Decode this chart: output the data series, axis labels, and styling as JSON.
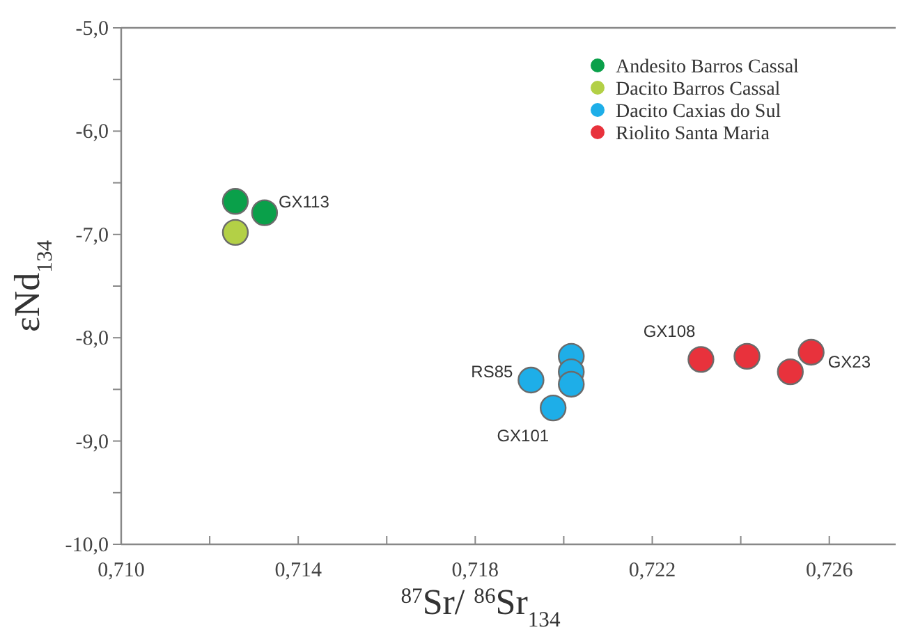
{
  "chart_data": {
    "type": "scatter",
    "xlabel": "$^{87}$Sr/ $^{86}$Sr$_{134}$",
    "ylabel": "εNd$_{134}$",
    "xlim": [
      0.71,
      0.7275
    ],
    "ylim": [
      -10,
      -5
    ],
    "xticks": [
      {
        "value": 0.71,
        "label": "0,710"
      },
      {
        "value": 0.712,
        "label": null
      },
      {
        "value": 0.714,
        "label": "0,714"
      },
      {
        "value": 0.716,
        "label": null
      },
      {
        "value": 0.718,
        "label": "0,718"
      },
      {
        "value": 0.72,
        "label": null
      },
      {
        "value": 0.722,
        "label": "0,722"
      },
      {
        "value": 0.724,
        "label": null
      },
      {
        "value": 0.726,
        "label": "0,726"
      }
    ],
    "yticks": [
      {
        "value": -10,
        "label": "-10,0"
      },
      {
        "value": -9.5,
        "label": null
      },
      {
        "value": -9,
        "label": "-9,0"
      },
      {
        "value": -8.5,
        "label": null
      },
      {
        "value": -8,
        "label": "-8,0"
      },
      {
        "value": -7.5,
        "label": null
      },
      {
        "value": -7,
        "label": "-7,0"
      },
      {
        "value": -6.5,
        "label": null
      },
      {
        "value": -6,
        "label": "-6,0"
      },
      {
        "value": -5.5,
        "label": null
      },
      {
        "value": -5,
        "label": "-5,0"
      }
    ],
    "grid": false,
    "legend": "top right",
    "marker": "circle",
    "series": [
      {
        "name": "Andesito Barros Cassal",
        "color": "#0aa04a",
        "x": [
          0.71258,
          0.71324
        ],
        "values": [
          -6.68,
          -6.79
        ]
      },
      {
        "name": "Dacito Barros Cassal",
        "color": "#b3d046",
        "x": [
          0.71258
        ],
        "values": [
          -6.98
        ]
      },
      {
        "name": "Dacito Caxias do Sul",
        "color": "#1eaee8",
        "x": [
          0.71926,
          0.71976,
          0.72017,
          0.72017,
          0.72017
        ],
        "values": [
          -8.41,
          -8.68,
          -8.18,
          -8.33,
          -8.45
        ]
      },
      {
        "name": "Riolito Santa Maria",
        "color": "#e8323c",
        "x": [
          0.7231,
          0.72414,
          0.72512,
          0.72559
        ],
        "values": [
          -8.21,
          -8.18,
          -8.33,
          -8.14
        ]
      }
    ],
    "annotations": [
      {
        "text": "GX113",
        "x": 0.71324,
        "y": -6.79
      },
      {
        "text": "RS85",
        "x": 0.71926,
        "y": -8.41
      },
      {
        "text": "GX101",
        "x": 0.71976,
        "y": -8.68
      },
      {
        "text": "GX108",
        "x": 0.7231,
        "y": -8.21
      },
      {
        "text": "GX23",
        "x": 0.72559,
        "y": -8.14
      }
    ]
  }
}
